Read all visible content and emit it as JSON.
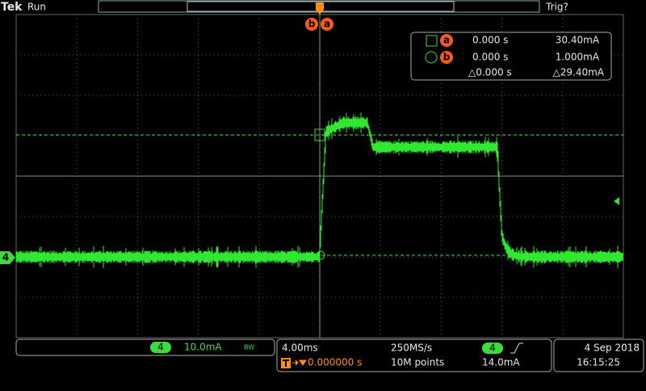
{
  "header": {
    "brand": "Tek",
    "status": "Run",
    "trigger_status": "Trig?"
  },
  "cursor_labels": {
    "b": "b",
    "a": "a"
  },
  "readout": {
    "rows": [
      {
        "cursor": "a",
        "time": "0.000 s",
        "value": "30.40mA"
      },
      {
        "cursor": "b",
        "time": "0.000 s",
        "value": "1.000mA"
      }
    ],
    "delta_time": "△0.000 s",
    "delta_value": "△29.40mA"
  },
  "channel_marker": "4",
  "bottom": {
    "channel": {
      "number": "4",
      "scale": "10.0mA",
      "bandwidth": "BW"
    },
    "horizontal": {
      "scale": "4.00ms",
      "sample_rate": "250MS/s",
      "trigger_channel": "4",
      "trigger_level": "14.0mA",
      "position": "0.000000 s",
      "record_length": "10M points"
    },
    "date": "4 Sep 2018",
    "time": "16:15:25"
  }
}
